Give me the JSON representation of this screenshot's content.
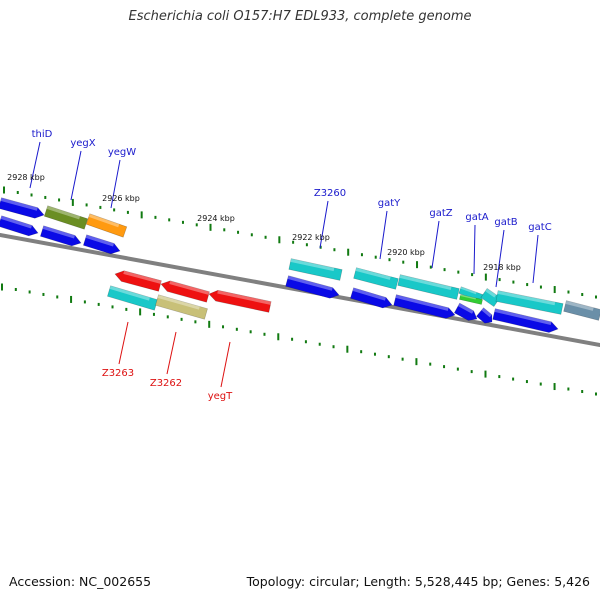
{
  "title": "Escherichia coli O157:H7 EDL933, complete genome",
  "footer": {
    "accession": "Accession: NC_002655",
    "summary": "Topology: circular; Length: 5,528,445 bp; Genes: 5,426"
  },
  "colors": {
    "backbone": "#808080",
    "tick": "#117a11",
    "forward_label": "#1a1acc",
    "reverse_label": "#dd1111",
    "blue": "#0a0ae6",
    "cyan": "#19c8c8",
    "red": "#ee1111",
    "olive": "#6b8e23",
    "orange": "#ff9a10",
    "khaki": "#c8c078",
    "green": "#33cc33",
    "steel": "#6a8fa8"
  },
  "scale_labels": [
    "2928 kbp",
    "2926 kbp",
    "2924 kbp",
    "2922 kbp",
    "2920 kbp",
    "2918 kbp"
  ],
  "gene_labels": {
    "forward": [
      "thiD",
      "yegX",
      "yegW",
      "Z3260",
      "gatY",
      "gatZ",
      "gatA",
      "gatB",
      "gatC"
    ],
    "reverse": [
      "Z3263",
      "Z3262",
      "yegT"
    ]
  }
}
